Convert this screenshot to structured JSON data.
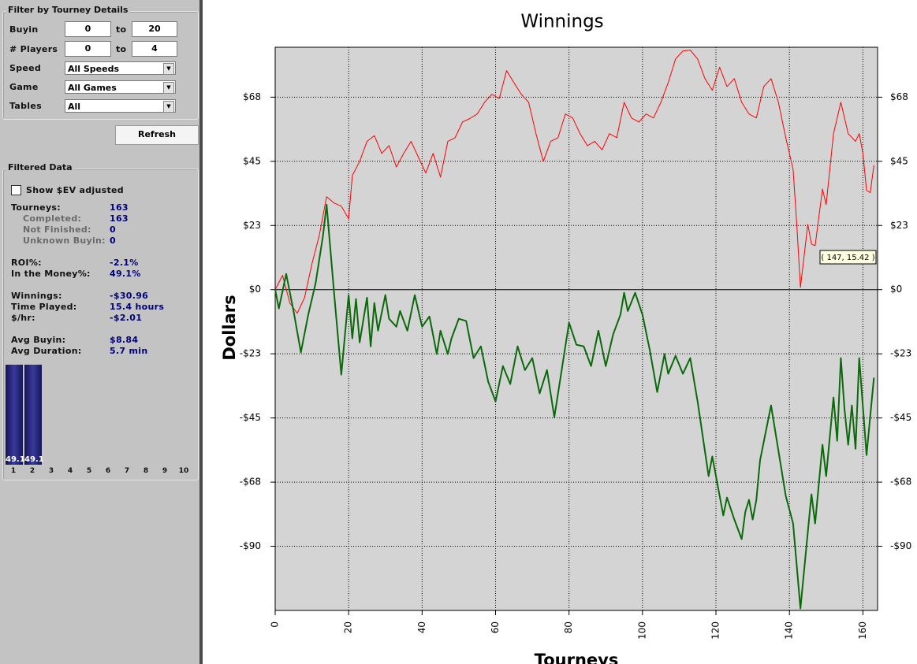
{
  "filter": {
    "title": "Filter by Tourney Details",
    "ranges": [
      {
        "label": "Buyin",
        "from": "0",
        "to_label": "to",
        "to": "20"
      },
      {
        "label": "# Players",
        "from": "0",
        "to_label": "to",
        "to": "4"
      }
    ],
    "selects": [
      {
        "label": "Speed",
        "value": "All Speeds"
      },
      {
        "label": "Game",
        "value": "All Games"
      },
      {
        "label": "Tables",
        "value": "All"
      }
    ],
    "button": "Refresh"
  },
  "filtered": {
    "title": "Filtered Data",
    "checkbox": "Show $EV adjusted",
    "groups": [
      [
        {
          "label": "Tourneys:",
          "value": "163"
        },
        {
          "label": "Completed:",
          "value": "163",
          "sub": true
        },
        {
          "label": "Not Finished:",
          "value": "0",
          "sub": true
        },
        {
          "label": "Unknown Buyin:",
          "value": "0",
          "sub": true
        }
      ],
      [
        {
          "label": "ROI%:",
          "value": "-2.1%"
        },
        {
          "label": "In the Money%:",
          "value": "49.1%"
        }
      ],
      [
        {
          "label": "Winnings:",
          "value": "-$30.96"
        },
        {
          "label": "Time Played:",
          "value": "15.4 hours"
        },
        {
          "label": "$/hr:",
          "value": "-$2.01"
        }
      ],
      [
        {
          "label": "Avg Buyin:",
          "value": "$8.84"
        },
        {
          "label": "Avg Duration:",
          "value": "5.7 min"
        }
      ]
    ]
  },
  "finish_chart": {
    "type": "bar",
    "categories": [
      "1",
      "2",
      "3",
      "4",
      "5",
      "6",
      "7",
      "8",
      "9",
      "10"
    ],
    "values": [
      49.1,
      49.1,
      null,
      null,
      null,
      null,
      null,
      null,
      null,
      null
    ]
  },
  "chart_data": {
    "type": "line",
    "title": "Winnings",
    "y_label": "Dollars",
    "x_label": "Tourneys",
    "xlim": [
      0,
      164
    ],
    "xticks": [
      0,
      20,
      40,
      60,
      80,
      100,
      120,
      140,
      160
    ],
    "ylim": [
      -112.5,
      85
    ],
    "yticks": [
      {
        "value": 67.5,
        "label": "$68"
      },
      {
        "value": 45,
        "label": "$45"
      },
      {
        "value": 22.5,
        "label": "$23"
      },
      {
        "value": 0,
        "label": "$0"
      },
      {
        "value": -22.5,
        "label": "-$23"
      },
      {
        "value": -45,
        "label": "-$45"
      },
      {
        "value": -67.5,
        "label": "-$68"
      },
      {
        "value": -90,
        "label": "-$90"
      }
    ],
    "grid": true,
    "tooltip": "( 147, 15.42 )",
    "series": [
      {
        "color": "#ff0000",
        "width": 1,
        "x": [
          0,
          2,
          4,
          6,
          8,
          10,
          12,
          14,
          16,
          18,
          20,
          21,
          23,
          25,
          27,
          29,
          31,
          33,
          35,
          37,
          39,
          41,
          43,
          45,
          47,
          49,
          51,
          53,
          55,
          57,
          59,
          61,
          63,
          65,
          67,
          69,
          71,
          73,
          75,
          77,
          79,
          81,
          83,
          85,
          87,
          89,
          91,
          93,
          95,
          97,
          99,
          101,
          103,
          105,
          107,
          109,
          111,
          113,
          115,
          117,
          119,
          121,
          123,
          125,
          127,
          129,
          131,
          133,
          135,
          137,
          139,
          141,
          142,
          143,
          145,
          146,
          147,
          149,
          150,
          152,
          154,
          156,
          158,
          159,
          160,
          161,
          162,
          163
        ],
        "values": [
          0,
          5,
          -4.7,
          -8.3,
          -2.8,
          9,
          19,
          32.6,
          30.4,
          29.3,
          24.8,
          40,
          45,
          52,
          54,
          47.8,
          50.5,
          43,
          47.8,
          52,
          46.4,
          40.9,
          47.8,
          39.5,
          52,
          53.3,
          58.8,
          60,
          61.6,
          65.7,
          68.5,
          67,
          76.8,
          72.6,
          68.5,
          65.7,
          54.7,
          45,
          52,
          53.3,
          61.6,
          60.2,
          54.7,
          50.5,
          52,
          49,
          54.7,
          53.3,
          65.7,
          60.2,
          58.8,
          61.6,
          60.2,
          65.7,
          72.6,
          80.9,
          83.7,
          84,
          80.9,
          74,
          69.9,
          78,
          71.2,
          74,
          65.7,
          61.6,
          60.2,
          71.2,
          74,
          65.7,
          53.3,
          42.2,
          22.9,
          0.8,
          22.9,
          16,
          15.42,
          35.3,
          29.8,
          54.7,
          65.7,
          54.7,
          52,
          54.7,
          47.8,
          34.8,
          34,
          43.6
        ]
      },
      {
        "color": "#0a6a0a",
        "width": 2,
        "x": [
          0,
          1,
          3,
          5,
          7,
          9,
          11,
          13,
          14,
          16,
          18,
          20,
          21,
          22,
          23,
          25,
          26,
          27,
          28,
          30,
          31,
          33,
          34,
          36,
          38,
          40,
          42,
          44,
          45,
          47,
          48,
          50,
          52,
          54,
          56,
          58,
          60,
          62,
          64,
          66,
          68,
          70,
          72,
          74,
          76,
          78,
          80,
          82,
          84,
          86,
          88,
          90,
          92,
          94,
          95,
          96,
          98,
          100,
          102,
          104,
          106,
          107,
          109,
          111,
          113,
          115,
          118,
          119,
          122,
          123,
          125,
          127,
          128,
          129,
          130,
          131,
          132,
          135,
          139,
          141,
          143,
          146,
          147,
          149,
          150,
          152,
          153,
          154,
          155,
          156,
          157,
          158,
          159,
          161,
          163
        ],
        "values": [
          0,
          -6.6,
          5.5,
          -7.5,
          -22,
          -8.8,
          2.2,
          18.8,
          29.8,
          -0.6,
          -29.8,
          -1.9,
          -17.1,
          -3.3,
          -18.5,
          -2.8,
          -19.9,
          -4.7,
          -14.4,
          -1.9,
          -10.2,
          -13,
          -7.5,
          -14.4,
          -1.9,
          -13,
          -9.4,
          -22.6,
          -14.4,
          -22.6,
          -17.1,
          -10.2,
          -11,
          -24,
          -19.9,
          -32.3,
          -39.2,
          -26.8,
          -33.1,
          -19.9,
          -28.2,
          -24,
          -36.4,
          -28.2,
          -44.7,
          -28.2,
          -11.6,
          -19.3,
          -19.9,
          -26.8,
          -14.4,
          -26.8,
          -15.7,
          -8.8,
          -1.1,
          -7.5,
          -1.1,
          -8.8,
          -21.3,
          -35.9,
          -22.6,
          -29.5,
          -23.2,
          -29.5,
          -24,
          -39.2,
          -65.4,
          -58.5,
          -79.2,
          -72.9,
          -80.6,
          -87.5,
          -77.9,
          -73.7,
          -80.6,
          -73.7,
          -59.9,
          -40.6,
          -72.3,
          -82,
          -111.8,
          -71.8,
          -82,
          -54.4,
          -65.4,
          -37.8,
          -53,
          -24,
          -42,
          -54.4,
          -40.6,
          -55.8,
          -24,
          -58,
          -30.9
        ]
      }
    ]
  }
}
